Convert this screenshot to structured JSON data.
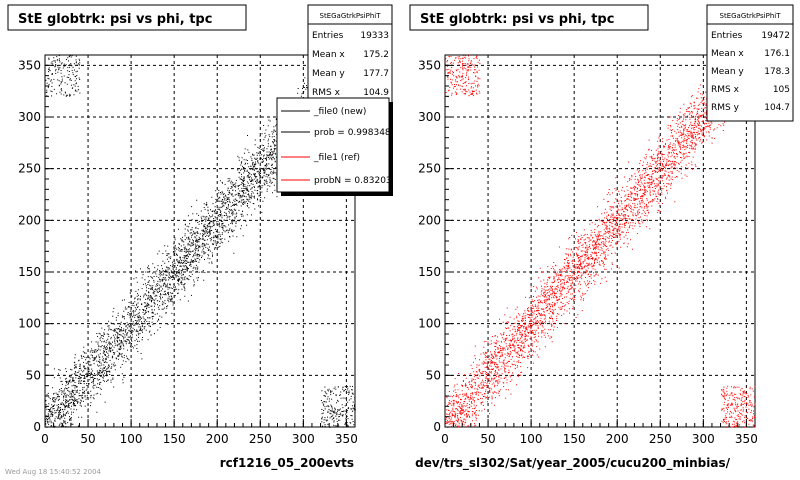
{
  "chart_data": [
    {
      "type": "scatter",
      "title": "StE globtrk: psi vs phi, tpc",
      "xlabel": "rcf1216_05_200evts",
      "ylabel": "",
      "xlim": [
        0,
        360
      ],
      "ylim": [
        0,
        360
      ],
      "xticks": [
        0,
        50,
        100,
        150,
        200,
        250,
        300,
        350
      ],
      "yticks": [
        0,
        50,
        100,
        150,
        200,
        250,
        300,
        350
      ],
      "grid": true,
      "color": "#000000",
      "stats": {
        "name": "StEGaGtrkPsiPhiT",
        "rows": [
          {
            "label": "Entries",
            "value": "19333"
          },
          {
            "label": "Mean x",
            "value": "175.2"
          },
          {
            "label": "Mean y",
            "value": "177.7"
          },
          {
            "label": "RMS x",
            "value": "104.9"
          }
        ]
      },
      "legend": {
        "placement": "top-right",
        "entries": [
          {
            "label": "_file0 (new)",
            "color": "#000000"
          },
          {
            "label": "prob = 0.998348",
            "color": "#000000"
          },
          {
            "label": "_file1 (ref)",
            "color": "#ff0000"
          },
          {
            "label": "probN = 0.83203",
            "color": "#ff0000"
          }
        ]
      },
      "distribution": {
        "band_width": 28,
        "entries_shown": 19333
      }
    },
    {
      "type": "scatter",
      "title": "StE globtrk: psi vs phi, tpc",
      "xlabel": "dev/trs_sl302/Sat/year_2005/cucu200_minbias/",
      "ylabel": "",
      "xlim": [
        0,
        360
      ],
      "ylim": [
        0,
        360
      ],
      "xticks": [
        0,
        50,
        100,
        150,
        200,
        250,
        300,
        350
      ],
      "yticks": [
        0,
        50,
        100,
        150,
        200,
        250,
        300,
        350
      ],
      "grid": true,
      "color": "#ff0000",
      "stats": {
        "name": "StEGaGtrkPsiPhiT",
        "rows": [
          {
            "label": "Entries",
            "value": "19472"
          },
          {
            "label": "Mean x",
            "value": "176.1"
          },
          {
            "label": "Mean y",
            "value": "178.3"
          },
          {
            "label": "RMS x",
            "value": "105"
          },
          {
            "label": "RMS y",
            "value": "104.7"
          }
        ]
      },
      "distribution": {
        "band_width": 28,
        "entries_shown": 19472
      }
    }
  ],
  "footer_text": "Wed Aug 18 15:40:52 2004"
}
